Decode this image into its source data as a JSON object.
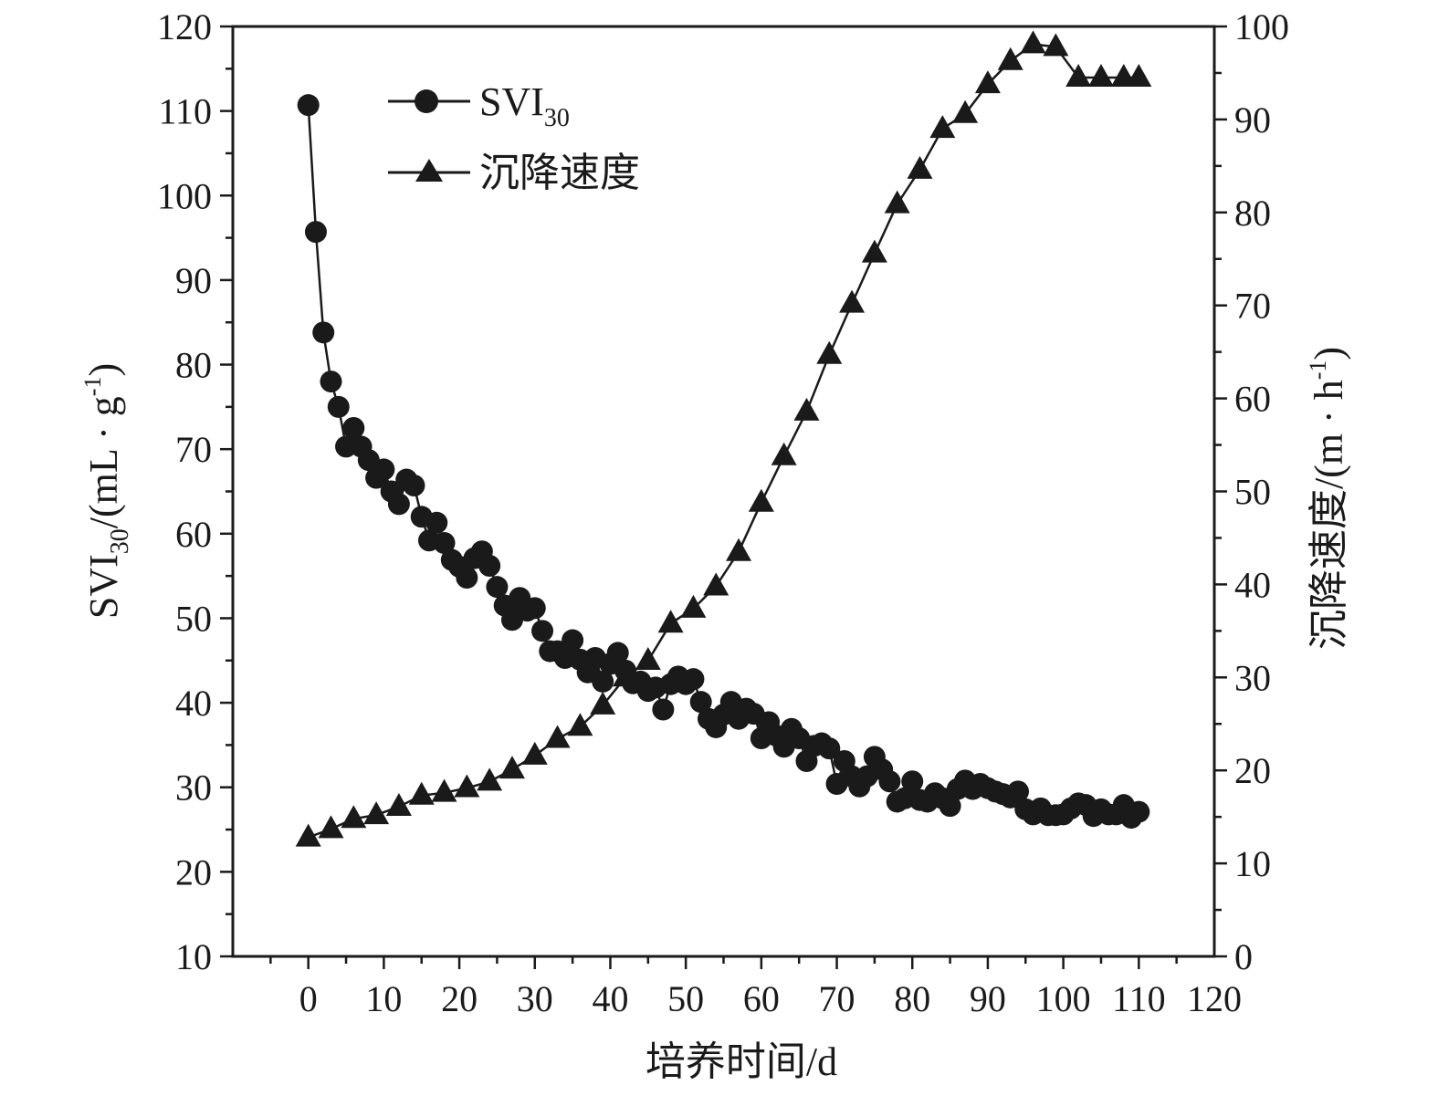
{
  "chart_data": {
    "type": "line",
    "xlabel": "培养时间/d",
    "ylabel_main": "SVI",
    "ylabel_sub": "30",
    "ylabel_rest": "/(mL · g",
    "ylabel_sup": "-1",
    "ylabel_end": ")",
    "y2label_main": "沉降速度/(m · h",
    "y2label_sup": "-1",
    "y2label_end": ")",
    "xlim": [
      -10,
      120
    ],
    "ylim": [
      10,
      120
    ],
    "y2lim": [
      0,
      100
    ],
    "x_ticks": [
      "0",
      "10",
      "20",
      "30",
      "40",
      "50",
      "60",
      "70",
      "80",
      "90",
      "100",
      "110",
      "120"
    ],
    "y_ticks": [
      "10",
      "20",
      "30",
      "40",
      "50",
      "60",
      "70",
      "80",
      "90",
      "100",
      "110",
      "120"
    ],
    "y2_ticks": [
      "0",
      "10",
      "20",
      "30",
      "40",
      "50",
      "60",
      "70",
      "80",
      "90",
      "100"
    ],
    "legend": {
      "position": "top-left",
      "svi_main": "SVI",
      "svi_sub": "30",
      "speed": "沉降速度"
    },
    "series": [
      {
        "name": "SVI30",
        "axis": "left",
        "marker": "circle",
        "x": [
          0,
          1,
          2,
          3,
          4,
          5,
          6,
          7,
          8,
          9,
          10,
          11,
          12,
          13,
          14,
          15,
          16,
          17,
          18,
          19,
          20,
          21,
          22,
          23,
          24,
          25,
          26,
          27,
          28,
          29,
          30,
          31,
          32,
          33,
          34,
          35,
          36,
          37,
          38,
          39,
          40,
          41,
          42,
          43,
          44,
          45,
          46,
          47,
          48,
          49,
          50,
          51,
          52,
          53,
          54,
          55,
          56,
          57,
          58,
          59,
          60,
          61,
          62,
          63,
          64,
          65,
          66,
          67,
          68,
          69,
          70,
          71,
          72,
          73,
          74,
          75,
          76,
          77,
          78,
          79,
          80,
          81,
          82,
          83,
          84,
          85,
          86,
          87,
          88,
          89,
          90,
          91,
          92,
          93,
          94,
          95,
          96,
          97,
          98,
          99,
          100,
          101,
          102,
          103,
          104,
          105,
          106,
          107,
          108,
          109,
          110
        ],
        "y": [
          110.7,
          95.7,
          83.8,
          78,
          75,
          70.3,
          72.5,
          70.3,
          68.7,
          66.6,
          67.6,
          65,
          63.5,
          66.4,
          65.7,
          62,
          59.2,
          61.3,
          58.9,
          56.9,
          56.1,
          54.8,
          57.1,
          57.9,
          56.2,
          53.7,
          51.5,
          49.8,
          52.4,
          50.9,
          51.2,
          48.5,
          46.1,
          46.1,
          45.3,
          47.4,
          45.1,
          43.6,
          45.3,
          42.5,
          44.6,
          45.9,
          43.8,
          42.3,
          42.5,
          41.4,
          41.8,
          39.2,
          42.2,
          43.1,
          42.2,
          42.8,
          40.1,
          38.1,
          37.1,
          38.6,
          40.1,
          38.1,
          39.3,
          38.7,
          35.8,
          37.7,
          36.1,
          34.8,
          36.9,
          35.8,
          33.1,
          34.9,
          35.2,
          34.6,
          30.4,
          33.1,
          31.3,
          30.1,
          31.3,
          33.6,
          32.1,
          30.7,
          28.3,
          28.7,
          30.7,
          28.5,
          28.3,
          29.3,
          28.7,
          27.8,
          29.8,
          30.8,
          29.8,
          30.4,
          29.9,
          29.5,
          29.2,
          28.8,
          29.5,
          27.4,
          26.8,
          27.5,
          26.7,
          26.7,
          26.8,
          27.5,
          28.1,
          27.9,
          26.6,
          27.4,
          26.8,
          26.8,
          27.9,
          26.4,
          27.1
        ]
      },
      {
        "name": "沉降速度",
        "axis": "right",
        "marker": "triangle",
        "x": [
          0,
          3,
          6,
          9,
          12,
          15,
          18,
          21,
          24,
          27,
          30,
          33,
          36,
          39,
          42,
          45,
          48,
          51,
          54,
          57,
          60,
          63,
          66,
          69,
          72,
          75,
          78,
          81,
          84,
          87,
          90,
          93,
          96,
          99,
          102,
          105,
          108,
          110
        ],
        "y": [
          12.8,
          13.7,
          14.8,
          15.2,
          16.1,
          17.3,
          17.6,
          18.1,
          18.8,
          20.1,
          21.6,
          23.4,
          24.7,
          27,
          30,
          31.8,
          35.8,
          37.4,
          39.8,
          43.5,
          48.8,
          53.8,
          58.6,
          64.7,
          70.2,
          75.6,
          80.9,
          84.6,
          89,
          90.6,
          93.8,
          96.3,
          98.1,
          97.8,
          94.5,
          94.5,
          94.5,
          94.5
        ]
      }
    ]
  }
}
